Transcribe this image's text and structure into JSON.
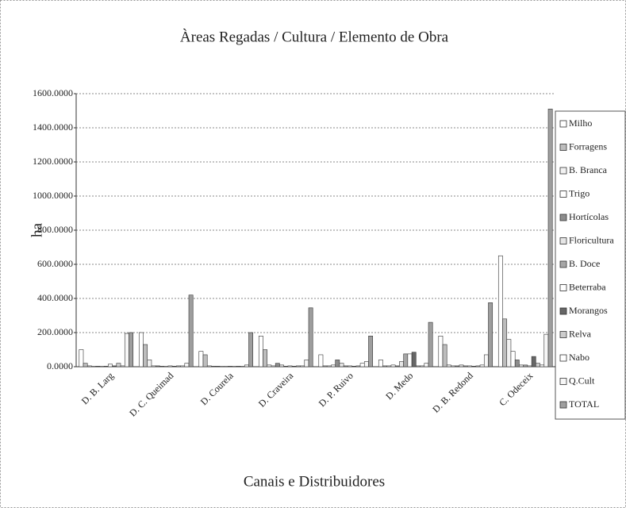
{
  "chart_data": {
    "type": "bar",
    "title": "Àreas Regadas / Cultura / Elemento de Obra",
    "x_label": "Canais e Distribuidores",
    "y_label": "ha",
    "categories": [
      "D. B. Larg",
      "D. C. Queimad",
      "D. Courela",
      "D. Craveira",
      "D. P. Ruivo",
      "D. Medo",
      "D. B. Redond",
      "C. Odeceix"
    ],
    "ylim": [
      0,
      1600
    ],
    "yticks": [
      {
        "value": 0,
        "label": "0.0000"
      },
      {
        "value": 200,
        "label": "200.0000"
      },
      {
        "value": 400,
        "label": "400.0000"
      },
      {
        "value": 600,
        "label": "600.0000"
      },
      {
        "value": 800,
        "label": "800.0000"
      },
      {
        "value": 1000,
        "label": "1000.0000"
      },
      {
        "value": 1200,
        "label": "1200.0000"
      },
      {
        "value": 1400,
        "label": "1400.0000"
      },
      {
        "value": 1600,
        "label": "1600.0000"
      }
    ],
    "grid": true,
    "legend": "right",
    "series": [
      {
        "name": "Milho",
        "color": "#ffffff",
        "values": [
          100,
          200,
          90,
          180,
          70,
          40,
          180,
          650
        ]
      },
      {
        "name": "Forragens",
        "color": "#bdbdbd",
        "values": [
          20,
          130,
          70,
          100,
          5,
          5,
          130,
          280
        ]
      },
      {
        "name": "B. Branca",
        "color": "#f2f2f2",
        "values": [
          5,
          40,
          5,
          10,
          5,
          5,
          10,
          160
        ]
      },
      {
        "name": "Trigo",
        "color": "#ffffff",
        "values": [
          2,
          5,
          3,
          5,
          10,
          10,
          5,
          90
        ]
      },
      {
        "name": "Hortícolas",
        "color": "#8c8c8c",
        "values": [
          3,
          5,
          3,
          20,
          40,
          5,
          5,
          40
        ]
      },
      {
        "name": "Floricultura",
        "color": "#e6e6e6",
        "values": [
          2,
          3,
          2,
          10,
          20,
          30,
          10,
          10
        ]
      },
      {
        "name": "B. Doce",
        "color": "#a6a6a6",
        "values": [
          3,
          2,
          2,
          3,
          5,
          75,
          5,
          10
        ]
      },
      {
        "name": "Beterraba",
        "color": "#ffffff",
        "values": [
          15,
          5,
          3,
          5,
          5,
          75,
          5,
          5
        ]
      },
      {
        "name": "Morangos",
        "color": "#666666",
        "values": [
          5,
          3,
          2,
          3,
          3,
          85,
          3,
          60
        ]
      },
      {
        "name": "Relva",
        "color": "#cccccc",
        "values": [
          20,
          5,
          3,
          5,
          5,
          5,
          5,
          20
        ]
      },
      {
        "name": "Nabo",
        "color": "#ffffff",
        "values": [
          5,
          5,
          2,
          5,
          20,
          5,
          10,
          10
        ]
      },
      {
        "name": "Q.Cult",
        "color": "#f7f7f7",
        "values": [
          195,
          20,
          10,
          40,
          30,
          20,
          70,
          190
        ]
      },
      {
        "name": "TOTAL",
        "color": "#9e9e9e",
        "values": [
          200,
          420,
          200,
          345,
          180,
          260,
          375,
          1510
        ]
      }
    ]
  }
}
